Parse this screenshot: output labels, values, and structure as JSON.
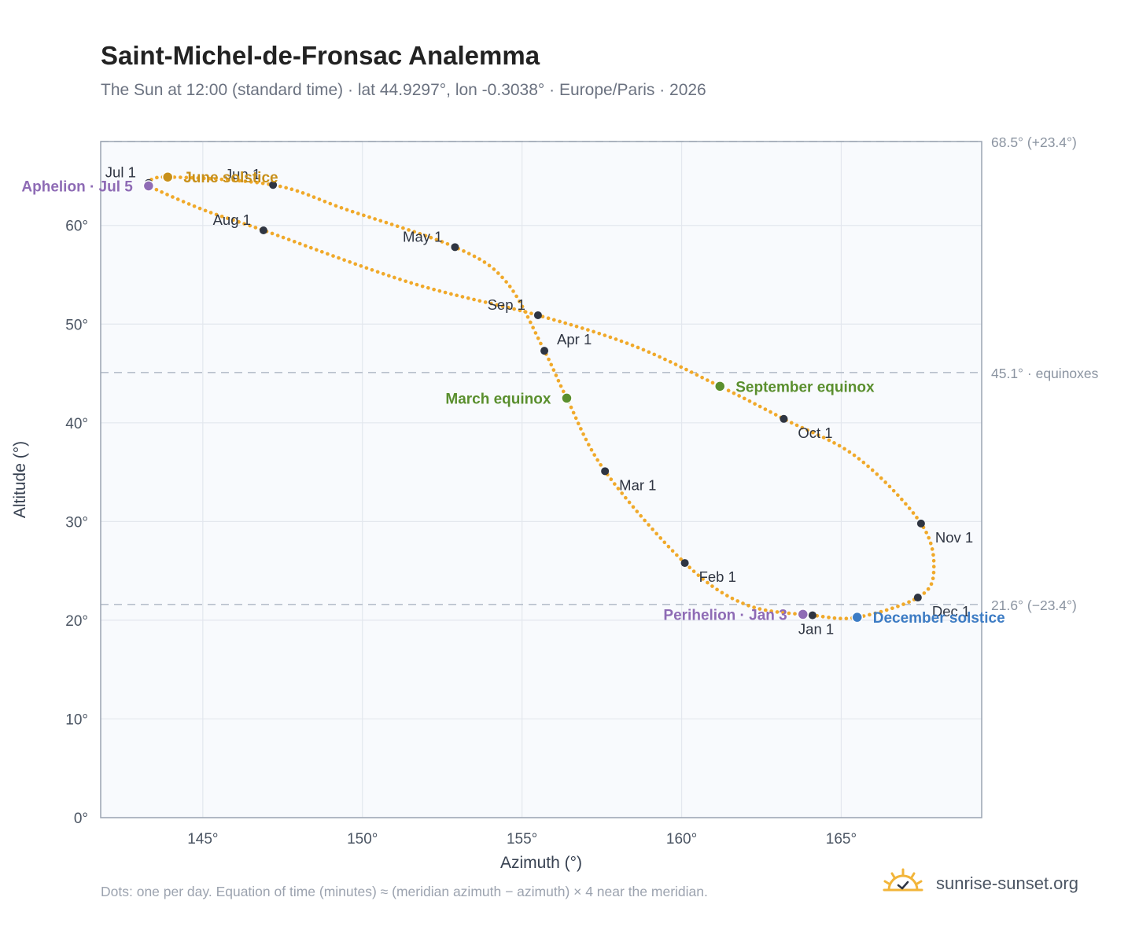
{
  "header": {
    "title": "Saint-Michel-de-Fronsac Analemma",
    "subtitle": "The Sun at 12:00 (standard time) · lat 44.9297°, lon -0.3038° · Europe/Paris · 2026"
  },
  "footer": {
    "note": "Dots: one per day. Equation of time (minutes) ≈ (meridian azimuth − azimuth) × 4 near the meridian.",
    "brand": "sunrise-sunset.org",
    "brand_icon": "sun-icon"
  },
  "colors": {
    "curve": "#f0a92a",
    "month_dot": "#2f3542",
    "june_solstice": "#c8901a",
    "december_solstice": "#3d7cc4",
    "equinox": "#5a8f2e",
    "apsis": "#8e6bb5",
    "plot_bg": "#f8fafd",
    "grid": "#e3e7ee",
    "reference_line": "#b8c0cc",
    "axis": "#9aa4b2"
  },
  "chart_data": {
    "type": "scatter",
    "title": "Saint-Michel-de-Fronsac Analemma",
    "xlabel": "Azimuth (°)",
    "ylabel": "Altitude (°)",
    "xlim": [
      141.8,
      169.4
    ],
    "ylim": [
      0,
      68.5
    ],
    "xticks": [
      145,
      150,
      155,
      160,
      165
    ],
    "xtick_labels": [
      "145°",
      "150°",
      "155°",
      "160°",
      "165°"
    ],
    "yticks": [
      0,
      10,
      20,
      30,
      40,
      50,
      60
    ],
    "ytick_labels": [
      "0°",
      "10°",
      "20°",
      "30°",
      "40°",
      "50°",
      "60°"
    ],
    "grid": true,
    "reference_lines": [
      {
        "y": 68.5,
        "label": "68.5° (+23.4°)"
      },
      {
        "y": 45.1,
        "label": "45.1° · equinoxes"
      },
      {
        "y": 21.6,
        "label": "21.6° (−23.4°)"
      }
    ],
    "path": [
      {
        "x": 164.1,
        "y": 20.5
      },
      {
        "x": 162.0,
        "y": 21.6
      },
      {
        "x": 160.1,
        "y": 25.8
      },
      {
        "x": 157.6,
        "y": 35.1
      },
      {
        "x": 156.4,
        "y": 42.5
      },
      {
        "x": 155.7,
        "y": 47.3
      },
      {
        "x": 154.5,
        "y": 54.3
      },
      {
        "x": 152.9,
        "y": 57.8
      },
      {
        "x": 149.5,
        "y": 61.6
      },
      {
        "x": 147.2,
        "y": 64.1
      },
      {
        "x": 143.9,
        "y": 64.9
      },
      {
        "x": 143.3,
        "y": 64.3
      },
      {
        "x": 143.3,
        "y": 64.0
      },
      {
        "x": 145.0,
        "y": 61.6
      },
      {
        "x": 146.9,
        "y": 59.5
      },
      {
        "x": 151.5,
        "y": 54.2
      },
      {
        "x": 155.5,
        "y": 50.9
      },
      {
        "x": 158.5,
        "y": 47.8
      },
      {
        "x": 161.2,
        "y": 43.7
      },
      {
        "x": 163.2,
        "y": 40.4
      },
      {
        "x": 165.5,
        "y": 36.5
      },
      {
        "x": 167.5,
        "y": 29.8
      },
      {
        "x": 167.9,
        "y": 25.0
      },
      {
        "x": 167.4,
        "y": 22.3
      },
      {
        "x": 165.5,
        "y": 20.3
      },
      {
        "x": 164.1,
        "y": 20.5
      }
    ],
    "month_markers": [
      {
        "label": "Jan 1",
        "x": 164.1,
        "y": 20.5,
        "anchor": "below"
      },
      {
        "label": "Feb 1",
        "x": 160.1,
        "y": 25.8,
        "anchor": "below-right"
      },
      {
        "label": "Mar 1",
        "x": 157.6,
        "y": 35.1,
        "anchor": "below-right"
      },
      {
        "label": "Apr 1",
        "x": 155.7,
        "y": 47.3,
        "anchor": "above-right"
      },
      {
        "label": "May 1",
        "x": 152.9,
        "y": 57.8,
        "anchor": "above-left"
      },
      {
        "label": "Jun 1",
        "x": 147.2,
        "y": 64.1,
        "anchor": "above-left"
      },
      {
        "label": "Jul 1",
        "x": 143.3,
        "y": 64.3,
        "anchor": "above-left"
      },
      {
        "label": "Aug 1",
        "x": 146.9,
        "y": 59.5,
        "anchor": "above-left"
      },
      {
        "label": "Sep 1",
        "x": 155.5,
        "y": 50.9,
        "anchor": "above-left"
      },
      {
        "label": "Oct 1",
        "x": 163.2,
        "y": 40.4,
        "anchor": "below-right"
      },
      {
        "label": "Nov 1",
        "x": 167.5,
        "y": 29.8,
        "anchor": "below-right"
      },
      {
        "label": "Dec 1",
        "x": 167.4,
        "y": 22.3,
        "anchor": "below-right"
      }
    ],
    "events": [
      {
        "label": "June solstice",
        "x": 143.9,
        "y": 64.9,
        "color": "#c8901a",
        "side": "right"
      },
      {
        "label": "December solstice",
        "x": 165.5,
        "y": 20.3,
        "color": "#3d7cc4",
        "side": "right"
      },
      {
        "label": "March equinox",
        "x": 156.4,
        "y": 42.5,
        "color": "#5a8f2e",
        "side": "left"
      },
      {
        "label": "September equinox",
        "x": 161.2,
        "y": 43.7,
        "color": "#5a8f2e",
        "side": "right"
      },
      {
        "label": "Aphelion · Jul 5",
        "x": 143.3,
        "y": 64.0,
        "color": "#8e6bb5",
        "side": "left"
      },
      {
        "label": "Perihelion · Jan 3",
        "x": 163.8,
        "y": 20.6,
        "color": "#8e6bb5",
        "side": "left"
      }
    ]
  }
}
